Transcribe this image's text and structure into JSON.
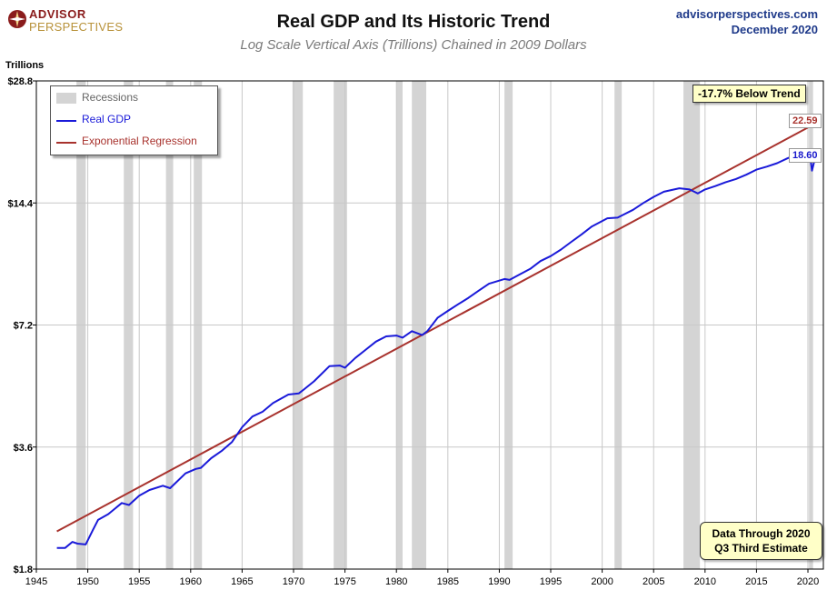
{
  "header": {
    "logo_line1": "ADVISOR",
    "logo_line2": "PERSPECTIVES",
    "source_site": "advisorperspectives.com",
    "source_date": "December 2020"
  },
  "annotations": {
    "below_trend": "-17.7% Below Trend",
    "end_trend_value": "22.59",
    "end_gdp_value": "18.60",
    "note_line1": "Data Through 2020",
    "note_line2": "Q3 Third Estimate"
  },
  "colors": {
    "gdp": "#1a1ad9",
    "trend": "#a8322d",
    "recession": "#d4d4d4",
    "grid": "#c8c8c8"
  },
  "chart_data": {
    "type": "line",
    "title": "Real GDP and Its Historic Trend",
    "subtitle": "Log Scale Vertical Axis (Trillions) Chained in 2009 Dollars",
    "ylabel": "Trillions",
    "xlabel": "",
    "y_scale": "log",
    "ylim": [
      1.8,
      28.8
    ],
    "xlim": [
      1945,
      2021.5
    ],
    "y_ticks": [
      1.8,
      3.6,
      7.2,
      14.4,
      28.8
    ],
    "y_tick_labels": [
      "$1.8",
      "$3.6",
      "$7.2",
      "$14.4",
      "$28.8"
    ],
    "x_ticks": [
      1945,
      1950,
      1955,
      1960,
      1965,
      1970,
      1975,
      1980,
      1985,
      1990,
      1995,
      2000,
      2005,
      2010,
      2015,
      2020
    ],
    "x_tick_labels": [
      "1945",
      "1950",
      "1955",
      "1960",
      "1965",
      "1970",
      "1975",
      "1980",
      "1985",
      "1990",
      "1995",
      "2000",
      "2005",
      "2010",
      "2015",
      "2020"
    ],
    "grid": true,
    "legend": {
      "position": "top-left",
      "items": [
        {
          "label": "Recessions",
          "type": "band"
        },
        {
          "label": "Real GDP",
          "type": "line"
        },
        {
          "label": "Exponential Regression",
          "type": "line"
        }
      ]
    },
    "recessions": [
      [
        1948.9,
        1949.8
      ],
      [
        1953.5,
        1954.4
      ],
      [
        1957.6,
        1958.3
      ],
      [
        1960.3,
        1961.1
      ],
      [
        1969.9,
        1970.9
      ],
      [
        1973.9,
        1975.2
      ],
      [
        1980.0,
        1980.6
      ],
      [
        1981.5,
        1982.9
      ],
      [
        1990.5,
        1991.3
      ],
      [
        2001.2,
        2001.9
      ],
      [
        2007.9,
        2009.5
      ],
      [
        2020.1,
        2020.5
      ]
    ],
    "series": [
      {
        "name": "Real GDP",
        "x": [
          1947.0,
          1947.8,
          1948.5,
          1949.0,
          1949.8,
          1950.5,
          1951.0,
          1952.0,
          1953.3,
          1954.0,
          1955.0,
          1956.0,
          1957.3,
          1958.0,
          1958.5,
          1959.5,
          1960.5,
          1961.0,
          1962.0,
          1963.0,
          1964.0,
          1965.0,
          1966.0,
          1967.0,
          1968.0,
          1969.5,
          1970.5,
          1971.0,
          1972.0,
          1973.5,
          1974.5,
          1975.0,
          1976.0,
          1977.0,
          1978.0,
          1979.0,
          1980.0,
          1980.6,
          1981.5,
          1982.5,
          1983.0,
          1984.0,
          1985.0,
          1986.0,
          1987.0,
          1988.0,
          1989.0,
          1990.5,
          1991.0,
          1992.0,
          1993.0,
          1994.0,
          1995.0,
          1996.0,
          1997.0,
          1998.0,
          1999.0,
          2000.5,
          2001.5,
          2002.0,
          2003.0,
          2004.0,
          2005.0,
          2006.0,
          2007.5,
          2008.5,
          2009.3,
          2010.0,
          2011.0,
          2012.0,
          2013.0,
          2014.0,
          2015.0,
          2016.0,
          2017.0,
          2018.0,
          2019.0,
          2019.9,
          2020.2,
          2020.4,
          2020.7
        ],
        "values": [
          2.03,
          2.03,
          2.1,
          2.08,
          2.07,
          2.25,
          2.38,
          2.46,
          2.62,
          2.59,
          2.73,
          2.82,
          2.89,
          2.85,
          2.93,
          3.1,
          3.18,
          3.2,
          3.38,
          3.52,
          3.7,
          4.03,
          4.28,
          4.4,
          4.62,
          4.85,
          4.88,
          4.99,
          5.23,
          5.7,
          5.72,
          5.65,
          5.97,
          6.25,
          6.55,
          6.75,
          6.78,
          6.7,
          6.95,
          6.8,
          6.95,
          7.5,
          7.8,
          8.1,
          8.4,
          8.75,
          9.1,
          9.35,
          9.3,
          9.6,
          9.9,
          10.35,
          10.65,
          11.05,
          11.55,
          12.05,
          12.6,
          13.2,
          13.25,
          13.45,
          13.85,
          14.4,
          14.9,
          15.35,
          15.65,
          15.55,
          15.2,
          15.55,
          15.85,
          16.2,
          16.5,
          16.9,
          17.4,
          17.7,
          18.05,
          18.55,
          19.0,
          19.2,
          18.9,
          17.3,
          18.6
        ]
      },
      {
        "name": "Exponential Regression",
        "x": [
          1947.0,
          2020.7
        ],
        "values": [
          2.23,
          22.59
        ]
      }
    ]
  }
}
